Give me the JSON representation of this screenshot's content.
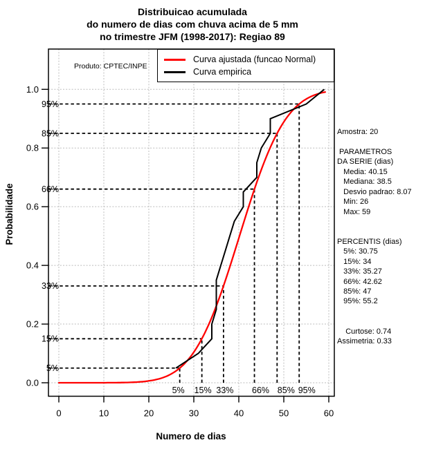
{
  "title": {
    "lines": [
      "Distribuicao acumulada",
      "do numero de dias com chuva acima de 5 mm",
      "no trimestre JFM (1998-2017): Regiao 89"
    ]
  },
  "chart_data": {
    "type": "line",
    "title": "Distribuicao acumulada do numero de dias com chuva acima de 5 mm no trimestre JFM (1998-2017): Regiao 89",
    "xlabel": "Numero de dias",
    "ylabel": "Probabilidade",
    "xlim": [
      0,
      60
    ],
    "ylim": [
      0,
      1
    ],
    "x_ticks": [
      0,
      10,
      20,
      30,
      40,
      50,
      60
    ],
    "y_ticks": [
      "0.0",
      "0.2",
      "0.4",
      "0.6",
      "0.8",
      "1.0"
    ],
    "grid": true,
    "annotation": "Produto: CPTEC/INPE",
    "legend": {
      "position": "top-right",
      "entries": [
        {
          "label": "Curva ajustada (funcao Normal)",
          "color": "#ff0000"
        },
        {
          "label": "Curva empirica",
          "color": "#000000"
        }
      ]
    },
    "series": [
      {
        "name": "Curva ajustada (funcao Normal)",
        "color": "#ff0000",
        "model": "normal-cdf",
        "mean": 40.15,
        "sd": 8.07,
        "x_start": 0,
        "x_end": 59.2
      },
      {
        "name": "Curva empirica",
        "color": "#000000",
        "points": [
          [
            26,
            0.05
          ],
          [
            31,
            0.1
          ],
          [
            34,
            0.15
          ],
          [
            34,
            0.2
          ],
          [
            35,
            0.25
          ],
          [
            35,
            0.3
          ],
          [
            35,
            0.35
          ],
          [
            36,
            0.4
          ],
          [
            37,
            0.45
          ],
          [
            38,
            0.5
          ],
          [
            39,
            0.55
          ],
          [
            41,
            0.6
          ],
          [
            41,
            0.65
          ],
          [
            44,
            0.7
          ],
          [
            44,
            0.75
          ],
          [
            45,
            0.8
          ],
          [
            47,
            0.85
          ],
          [
            47,
            0.9
          ],
          [
            55,
            0.95
          ],
          [
            59,
            1.0
          ]
        ]
      }
    ],
    "percentile_guides": {
      "labels": [
        "5%",
        "15%",
        "33%",
        "66%",
        "85%",
        "95%"
      ],
      "probs": [
        0.05,
        0.15,
        0.33,
        0.66,
        0.85,
        0.95
      ],
      "x_days": [
        26.87,
        31.79,
        36.6,
        43.47,
        48.51,
        53.42
      ]
    }
  },
  "stats_panel": {
    "lines": [
      "Amostra: 20",
      "",
      " PARAMETROS",
      "DA SERIE (dias)",
      "   Media: 40.15",
      "   Mediana: 38.5",
      "   Desvio padrao: 8.07",
      "   Min: 26",
      "   Max: 59",
      "",
      "",
      "PERCENTIS (dias)",
      "   5%: 30.75",
      "   15%: 34",
      "   33%: 35.27",
      "   66%: 42.62",
      "   85%: 47",
      "   95%: 55.2",
      "",
      "",
      "    Curtose: 0.74",
      "Assimetria: 0.33"
    ]
  },
  "colors": {
    "fitted": "#ff0000",
    "empirical": "#000000",
    "grid": "#bbbbbb",
    "guides": "#000000",
    "background": "#ffffff"
  }
}
